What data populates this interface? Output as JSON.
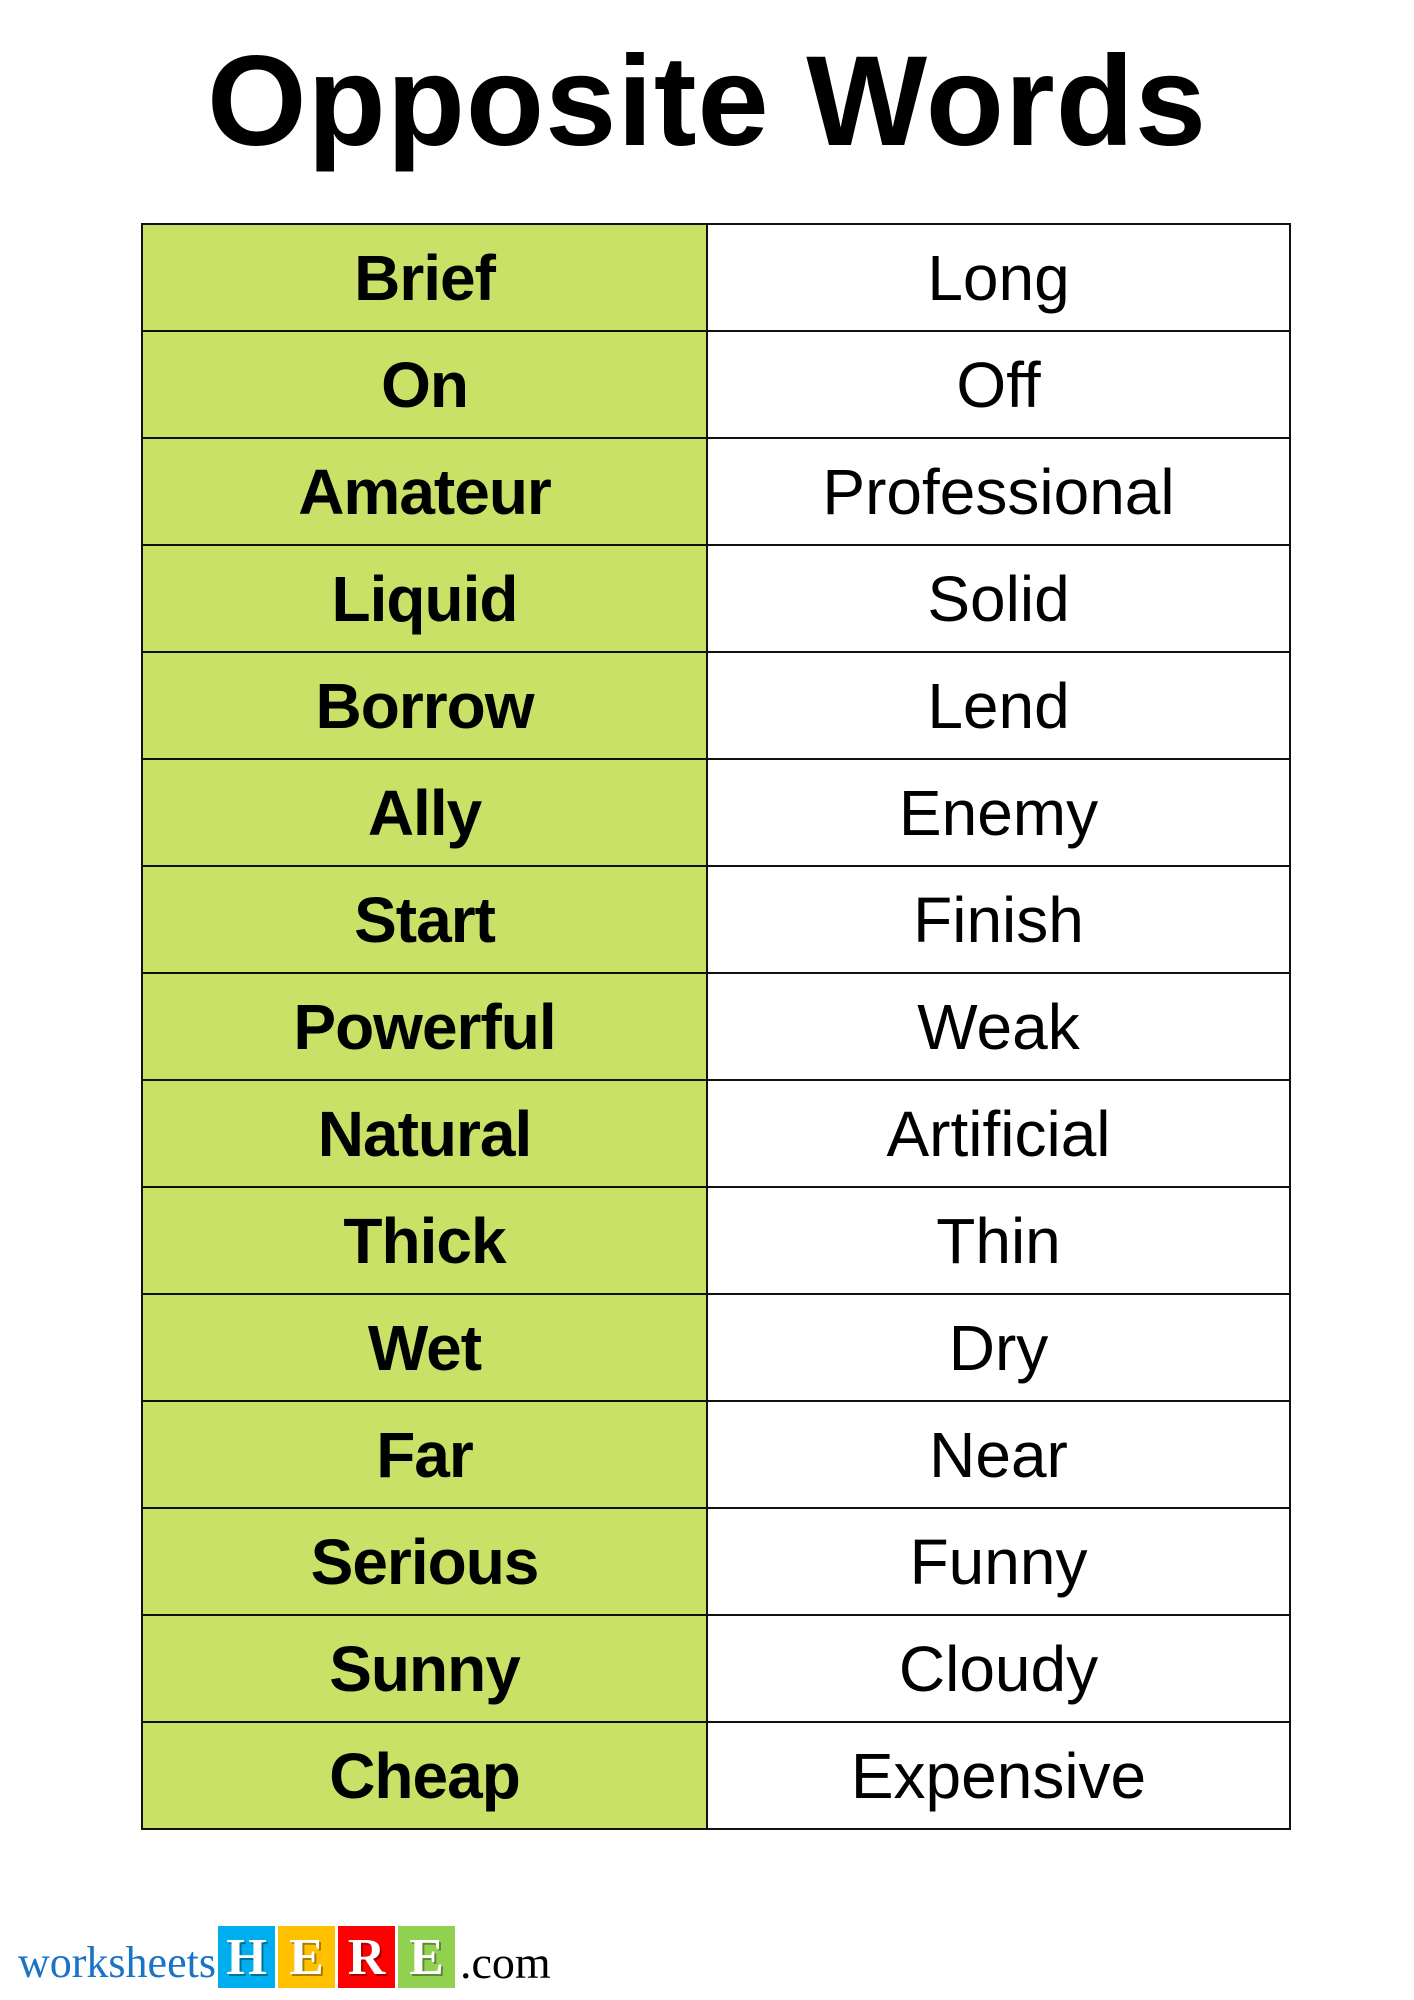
{
  "title": "Opposite Words",
  "colors": {
    "accent": "#c9e167",
    "border": "#111111"
  },
  "pairs": [
    {
      "word": "Brief",
      "opposite": "Long"
    },
    {
      "word": "On",
      "opposite": "Off"
    },
    {
      "word": "Amateur",
      "opposite": "Professional"
    },
    {
      "word": "Liquid",
      "opposite": "Solid"
    },
    {
      "word": "Borrow",
      "opposite": "Lend"
    },
    {
      "word": "Ally",
      "opposite": "Enemy"
    },
    {
      "word": "Start",
      "opposite": "Finish"
    },
    {
      "word": "Powerful",
      "opposite": "Weak"
    },
    {
      "word": "Natural",
      "opposite": "Artificial"
    },
    {
      "word": "Thick",
      "opposite": "Thin"
    },
    {
      "word": "Wet",
      "opposite": "Dry"
    },
    {
      "word": "Far",
      "opposite": "Near"
    },
    {
      "word": "Serious",
      "opposite": "Funny"
    },
    {
      "word": "Sunny",
      "opposite": "Cloudy"
    },
    {
      "word": "Cheap",
      "opposite": "Expensive"
    }
  ],
  "logo": {
    "prefix": "worksheets",
    "letters": [
      {
        "char": "H",
        "color": "#00aeef"
      },
      {
        "char": "E",
        "color": "#ffc000"
      },
      {
        "char": "R",
        "color": "#ff0000"
      },
      {
        "char": "E",
        "color": "#92d050"
      }
    ],
    "suffix": ".com"
  }
}
